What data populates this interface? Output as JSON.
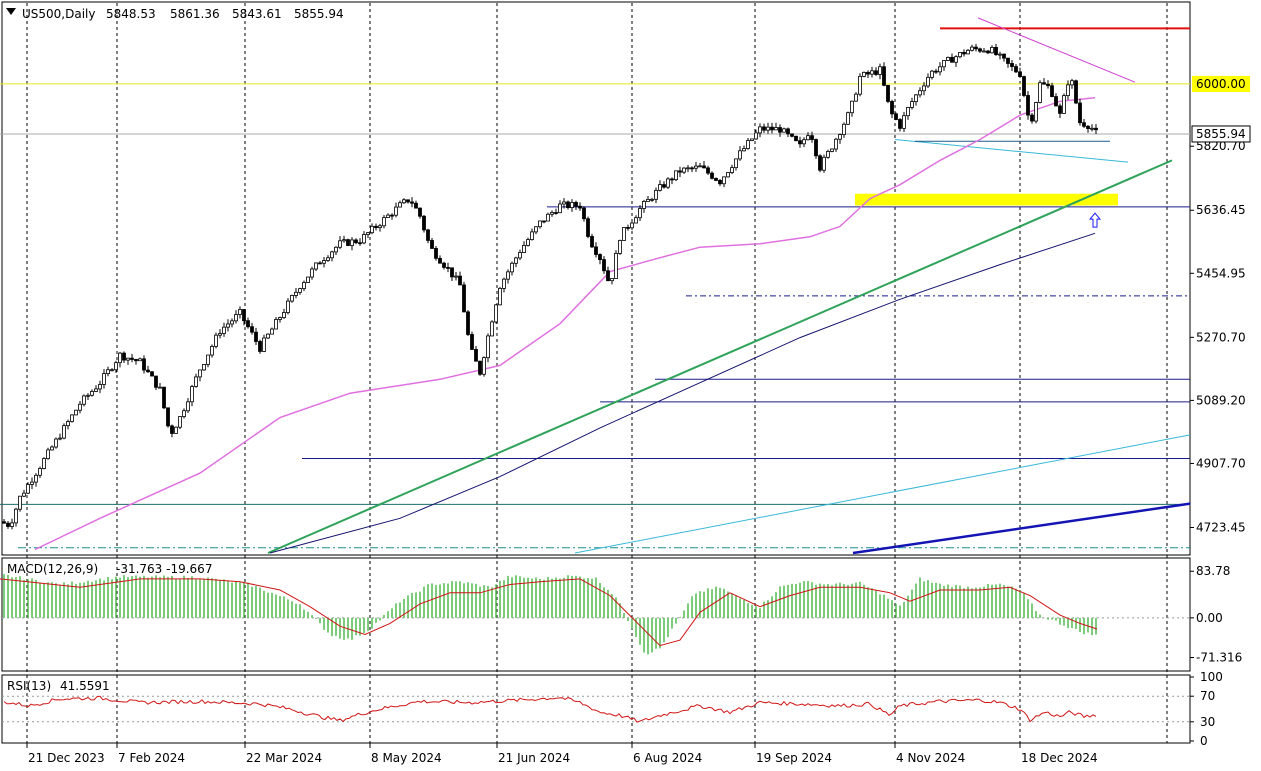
{
  "header": {
    "symbol": "US500,Daily",
    "open": "5848.53",
    "high": "5861.36",
    "low": "5843.61",
    "close": "5855.94"
  },
  "chart_data": [
    {
      "type": "candlestick",
      "ylim": [
        4650,
        6230
      ],
      "y_tick_labels": [
        "5820.70",
        "5636.45",
        "5454.95",
        "5270.70",
        "5089.20",
        "4907.70",
        "4723.45"
      ],
      "y_tick_values": [
        5820.7,
        5636.45,
        5454.95,
        5270.7,
        5089.2,
        4907.7,
        4723.45
      ],
      "price_labels": [
        {
          "text": "6000.00",
          "value": 6000.0,
          "color": "#ffff00"
        },
        {
          "text": "5855.94",
          "value": 5855.94,
          "color": "#ffffff"
        }
      ],
      "x_labels": [
        "21 Dec 2023",
        "7 Feb 2024",
        "22 Mar 2024",
        "8 May 2024",
        "21 Jun 2024",
        "6 Aug 2024",
        "19 Sep 2024",
        "4 Nov 2024",
        "18 Dec 2024"
      ],
      "close_waypoints": [
        [
          0,
          4740
        ],
        [
          10,
          4730
        ],
        [
          20,
          4810
        ],
        [
          40,
          4900
        ],
        [
          60,
          4990
        ],
        [
          80,
          5080
        ],
        [
          100,
          5140
        ],
        [
          120,
          5220
        ],
        [
          140,
          5200
        ],
        [
          160,
          5120
        ],
        [
          170,
          4990
        ],
        [
          180,
          5040
        ],
        [
          200,
          5180
        ],
        [
          220,
          5290
        ],
        [
          240,
          5340
        ],
        [
          260,
          5240
        ],
        [
          280,
          5330
        ],
        [
          300,
          5420
        ],
        [
          320,
          5490
        ],
        [
          340,
          5540
        ],
        [
          360,
          5550
        ],
        [
          380,
          5600
        ],
        [
          400,
          5650
        ],
        [
          410,
          5670
        ],
        [
          420,
          5620
        ],
        [
          430,
          5530
        ],
        [
          450,
          5460
        ],
        [
          460,
          5420
        ],
        [
          470,
          5240
        ],
        [
          480,
          5170
        ],
        [
          490,
          5300
        ],
        [
          500,
          5420
        ],
        [
          520,
          5520
        ],
        [
          540,
          5600
        ],
        [
          560,
          5650
        ],
        [
          580,
          5650
        ],
        [
          590,
          5550
        ],
        [
          600,
          5500
        ],
        [
          610,
          5420
        ],
        [
          620,
          5560
        ],
        [
          640,
          5640
        ],
        [
          660,
          5700
        ],
        [
          680,
          5750
        ],
        [
          700,
          5760
        ],
        [
          720,
          5720
        ],
        [
          740,
          5800
        ],
        [
          760,
          5870
        ],
        [
          780,
          5870
        ],
        [
          800,
          5820
        ],
        [
          810,
          5870
        ],
        [
          820,
          5760
        ],
        [
          830,
          5810
        ],
        [
          850,
          5920
        ],
        [
          860,
          6020
        ],
        [
          880,
          6040
        ],
        [
          890,
          5920
        ],
        [
          900,
          5880
        ],
        [
          910,
          5940
        ],
        [
          930,
          6030
        ],
        [
          950,
          6070
        ],
        [
          970,
          6100
        ],
        [
          990,
          6100
        ],
        [
          1010,
          6050
        ],
        [
          1020,
          6030
        ],
        [
          1030,
          5880
        ],
        [
          1040,
          6000
        ],
        [
          1050,
          5990
        ],
        [
          1060,
          5910
        ],
        [
          1070,
          6030
        ],
        [
          1080,
          5890
        ],
        [
          1090,
          5880
        ],
        [
          1097,
          5855
        ]
      ],
      "ma_fast": [
        [
          35,
          4660
        ],
        [
          100,
          4750
        ],
        [
          200,
          4880
        ],
        [
          280,
          5040
        ],
        [
          350,
          5110
        ],
        [
          440,
          5150
        ],
        [
          500,
          5190
        ],
        [
          560,
          5310
        ],
        [
          610,
          5460
        ],
        [
          660,
          5500
        ],
        [
          700,
          5530
        ],
        [
          760,
          5540
        ],
        [
          810,
          5560
        ],
        [
          840,
          5590
        ],
        [
          870,
          5670
        ],
        [
          900,
          5710
        ],
        [
          940,
          5780
        ],
        [
          980,
          5840
        ],
        [
          1020,
          5910
        ],
        [
          1060,
          5950
        ],
        [
          1095,
          5960
        ]
      ],
      "ma_slow": [
        [
          270,
          4650
        ],
        [
          400,
          4750
        ],
        [
          500,
          4870
        ],
        [
          600,
          5010
        ],
        [
          700,
          5140
        ],
        [
          800,
          5270
        ],
        [
          900,
          5380
        ],
        [
          1000,
          5480
        ],
        [
          1095,
          5570
        ]
      ],
      "trendlines": [
        {
          "kind": "h",
          "y": 6160,
          "x1": 940,
          "x2": 1190,
          "color": "#e01010"
        },
        {
          "kind": "h",
          "y": 6000,
          "x1": 0,
          "x2": 1190,
          "color": "#e8e81a"
        },
        {
          "kind": "h",
          "y": 5855.94,
          "x1": 0,
          "x2": 1190,
          "color": "#a8a8a8"
        },
        {
          "kind": "h",
          "y": 5646,
          "x1": 547,
          "x2": 1190,
          "color": "#1a1a8c"
        },
        {
          "kind": "h",
          "y": 5390,
          "x1": 686,
          "x2": 1190,
          "color": "#1a1a8c",
          "dash": "6,3,2,3"
        },
        {
          "kind": "h",
          "y": 5150,
          "x1": 655,
          "x2": 1190,
          "color": "#1a1a8c"
        },
        {
          "kind": "h",
          "y": 5085,
          "x1": 600,
          "x2": 1190,
          "color": "#1a1a8c"
        },
        {
          "kind": "h",
          "y": 4922,
          "x1": 302,
          "x2": 1190,
          "color": "#1a1a8c"
        },
        {
          "kind": "h",
          "y": 4790,
          "x1": 0,
          "x2": 1190,
          "color": "#1a6e6e"
        },
        {
          "kind": "h",
          "y": 4665,
          "x1": 18,
          "x2": 1190,
          "color": "#1a8c8c",
          "dash": "8,3,2,3"
        },
        {
          "kind": "line",
          "x1": 268,
          "y1": 4650,
          "x2": 1172,
          "y2": 5780,
          "color": "#2fa35a",
          "width": 2
        },
        {
          "kind": "line",
          "x1": 575,
          "y1": 4650,
          "x2": 1190,
          "y2": 4990,
          "color": "#38b8d8",
          "width": 1
        },
        {
          "kind": "line",
          "x1": 853,
          "y1": 4650,
          "x2": 1190,
          "y2": 4792,
          "color": "#1414b4",
          "width": 2.5
        },
        {
          "kind": "line",
          "x1": 978,
          "y1": 6190,
          "x2": 1135,
          "y2": 6005,
          "color": "#d040d0",
          "width": 1
        },
        {
          "kind": "line",
          "x1": 895,
          "y1": 5840,
          "x2": 1128,
          "y2": 5775,
          "color": "#38b8d8",
          "width": 1
        },
        {
          "kind": "line",
          "x1": 915,
          "y1": 5835,
          "x2": 1110,
          "y2": 5835,
          "color": "#1a5a8c",
          "width": 1
        }
      ],
      "zone": {
        "y_low": 5650,
        "y_high": 5684,
        "x1": 855,
        "x2": 1118,
        "color": "#ffff00"
      },
      "arrow": {
        "x": 1095,
        "y": 5605,
        "color": "#1a1aff"
      }
    },
    {
      "type": "bar",
      "title": "MACD(12,26,9)",
      "values_text": "-31.763 -19.667",
      "ylim": [
        -92,
        104
      ],
      "y_tick_labels": [
        "83.78",
        "0.00",
        "-71.316"
      ],
      "y_tick_values": [
        83.78,
        0,
        -71.316
      ],
      "hist_waypoints": [
        [
          0,
          78
        ],
        [
          60,
          60
        ],
        [
          120,
          74
        ],
        [
          200,
          73
        ],
        [
          250,
          60
        ],
        [
          300,
          25
        ],
        [
          330,
          -30
        ],
        [
          350,
          -40
        ],
        [
          370,
          -20
        ],
        [
          400,
          30
        ],
        [
          430,
          60
        ],
        [
          460,
          65
        ],
        [
          490,
          55
        ],
        [
          510,
          75
        ],
        [
          540,
          70
        ],
        [
          570,
          75
        ],
        [
          595,
          72
        ],
        [
          615,
          40
        ],
        [
          630,
          -10
        ],
        [
          645,
          -65
        ],
        [
          660,
          -55
        ],
        [
          680,
          0
        ],
        [
          695,
          45
        ],
        [
          720,
          55
        ],
        [
          740,
          35
        ],
        [
          760,
          20
        ],
        [
          780,
          55
        ],
        [
          800,
          65
        ],
        [
          830,
          60
        ],
        [
          860,
          62
        ],
        [
          880,
          45
        ],
        [
          900,
          20
        ],
        [
          920,
          70
        ],
        [
          940,
          60
        ],
        [
          970,
          55
        ],
        [
          1000,
          60
        ],
        [
          1020,
          50
        ],
        [
          1040,
          5
        ],
        [
          1060,
          -10
        ],
        [
          1080,
          -25
        ],
        [
          1097,
          -32
        ]
      ],
      "signal_waypoints": [
        [
          0,
          70
        ],
        [
          80,
          55
        ],
        [
          140,
          70
        ],
        [
          200,
          70
        ],
        [
          240,
          65
        ],
        [
          280,
          50
        ],
        [
          310,
          20
        ],
        [
          340,
          -15
        ],
        [
          365,
          -30
        ],
        [
          390,
          -10
        ],
        [
          420,
          25
        ],
        [
          450,
          45
        ],
        [
          480,
          45
        ],
        [
          510,
          60
        ],
        [
          540,
          65
        ],
        [
          580,
          70
        ],
        [
          610,
          40
        ],
        [
          635,
          -5
        ],
        [
          660,
          -50
        ],
        [
          680,
          -40
        ],
        [
          700,
          10
        ],
        [
          730,
          45
        ],
        [
          760,
          20
        ],
        [
          790,
          40
        ],
        [
          820,
          55
        ],
        [
          860,
          55
        ],
        [
          890,
          45
        ],
        [
          910,
          30
        ],
        [
          940,
          50
        ],
        [
          980,
          50
        ],
        [
          1010,
          55
        ],
        [
          1030,
          40
        ],
        [
          1060,
          5
        ],
        [
          1080,
          -10
        ],
        [
          1097,
          -20
        ]
      ]
    },
    {
      "type": "line",
      "title": "RSI(13)",
      "values_text": "41.5591",
      "ylim": [
        0,
        100
      ],
      "y_tick_labels": [
        "100",
        "70",
        "30",
        "0"
      ],
      "y_tick_values": [
        100,
        70,
        30,
        0
      ],
      "waypoints": [
        [
          0,
          62
        ],
        [
          30,
          55
        ],
        [
          60,
          66
        ],
        [
          100,
          67
        ],
        [
          140,
          60
        ],
        [
          200,
          62
        ],
        [
          260,
          58
        ],
        [
          290,
          50
        ],
        [
          320,
          38
        ],
        [
          340,
          32
        ],
        [
          360,
          42
        ],
        [
          380,
          50
        ],
        [
          420,
          62
        ],
        [
          470,
          60
        ],
        [
          520,
          64
        ],
        [
          560,
          68
        ],
        [
          580,
          60
        ],
        [
          600,
          45
        ],
        [
          620,
          40
        ],
        [
          640,
          30
        ],
        [
          660,
          40
        ],
        [
          700,
          55
        ],
        [
          730,
          45
        ],
        [
          760,
          60
        ],
        [
          800,
          58
        ],
        [
          840,
          55
        ],
        [
          870,
          58
        ],
        [
          890,
          40
        ],
        [
          900,
          55
        ],
        [
          940,
          62
        ],
        [
          980,
          64
        ],
        [
          1000,
          60
        ],
        [
          1020,
          50
        ],
        [
          1030,
          33
        ],
        [
          1045,
          45
        ],
        [
          1060,
          38
        ],
        [
          1070,
          45
        ],
        [
          1085,
          38
        ],
        [
          1097,
          41.56
        ]
      ]
    }
  ]
}
